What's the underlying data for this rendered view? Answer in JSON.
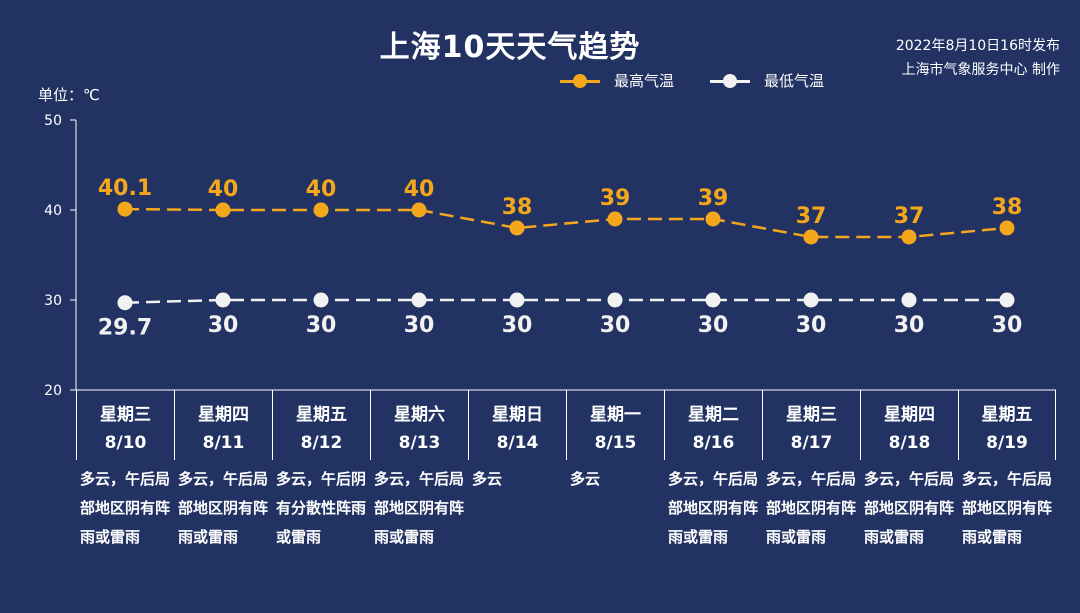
{
  "title": "上海10天天气趋势",
  "publish": {
    "line1": "2022年8月10日16时发布",
    "line2": "上海市气象服务中心 制作"
  },
  "unit_label": "单位：℃",
  "colors": {
    "background": "#223363",
    "high": "#f5a71c",
    "low": "#f2f2f2",
    "axis": "#ffffff"
  },
  "chart_data": {
    "type": "line",
    "ylim": [
      20,
      50
    ],
    "yticks": [
      20,
      30,
      40,
      50
    ],
    "grid": false,
    "legend_position": "top-right",
    "categories": [
      "8/10",
      "8/11",
      "8/12",
      "8/13",
      "8/14",
      "8/15",
      "8/16",
      "8/17",
      "8/18",
      "8/19"
    ],
    "weekdays": [
      "星期三",
      "星期四",
      "星期五",
      "星期六",
      "星期日",
      "星期一",
      "星期二",
      "星期三",
      "星期四",
      "星期五"
    ],
    "weather": [
      "多云，午后局部地区阴有阵雨或雷雨",
      "多云，午后局部地区阴有阵雨或雷雨",
      "多云，午后阴有分散性阵雨或雷雨",
      "多云，午后局部地区阴有阵雨或雷雨",
      "多云",
      "多云",
      "多云，午后局部地区阴有阵雨或雷雨",
      "多云，午后局部地区阴有阵雨或雷雨",
      "多云，午后局部地区阴有阵雨或雷雨",
      "多云，午后局部地区阴有阵雨或雷雨"
    ],
    "series": [
      {
        "name": "最高气温",
        "values": [
          40.1,
          40,
          40,
          40,
          38,
          39,
          39,
          37,
          37,
          38
        ]
      },
      {
        "name": "最低气温",
        "values": [
          29.7,
          30,
          30,
          30,
          30,
          30,
          30,
          30,
          30,
          30
        ]
      }
    ]
  }
}
